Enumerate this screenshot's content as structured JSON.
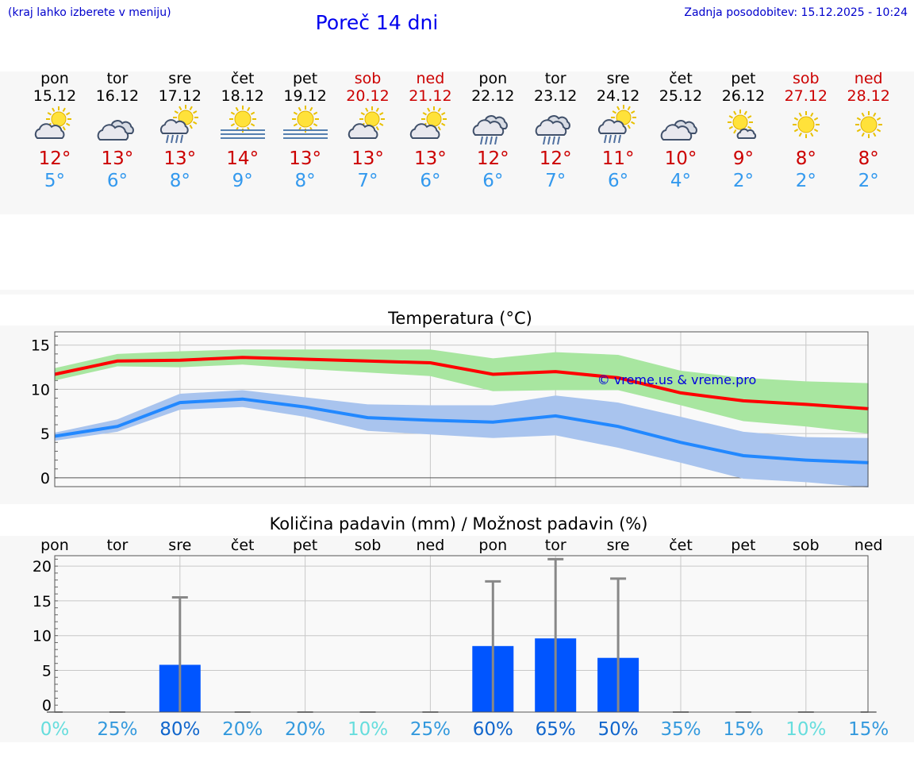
{
  "header": {
    "hint": "(kraj lahko izberete v meniju)",
    "title": "Poreč 14 dni",
    "updated": "Zadnja posodobitev: 15.12.2025 - 10:24"
  },
  "days": [
    {
      "name": "pon",
      "date": "15.12",
      "weekend": false,
      "icon": "sun-cloud-icon",
      "max": "12°",
      "min": "5°"
    },
    {
      "name": "tor",
      "date": "16.12",
      "weekend": false,
      "icon": "cloudy-icon",
      "max": "13°",
      "min": "6°"
    },
    {
      "name": "sre",
      "date": "17.12",
      "weekend": false,
      "icon": "sun-cloud-rain-icon",
      "max": "13°",
      "min": "8°"
    },
    {
      "name": "čet",
      "date": "18.12",
      "weekend": false,
      "icon": "sun-fog-icon",
      "max": "14°",
      "min": "9°"
    },
    {
      "name": "pet",
      "date": "19.12",
      "weekend": false,
      "icon": "sun-fog-icon",
      "max": "13°",
      "min": "8°"
    },
    {
      "name": "sob",
      "date": "20.12",
      "weekend": true,
      "icon": "sun-cloud-icon",
      "max": "13°",
      "min": "7°"
    },
    {
      "name": "ned",
      "date": "21.12",
      "weekend": true,
      "icon": "sun-cloud-icon",
      "max": "13°",
      "min": "6°"
    },
    {
      "name": "pon",
      "date": "22.12",
      "weekend": false,
      "icon": "cloud-rain-icon",
      "max": "12°",
      "min": "6°"
    },
    {
      "name": "tor",
      "date": "23.12",
      "weekend": false,
      "icon": "cloud-rain-icon",
      "max": "12°",
      "min": "7°"
    },
    {
      "name": "sre",
      "date": "24.12",
      "weekend": false,
      "icon": "sun-cloud-rain-icon",
      "max": "11°",
      "min": "6°"
    },
    {
      "name": "čet",
      "date": "25.12",
      "weekend": false,
      "icon": "cloudy-icon",
      "max": "10°",
      "min": "4°"
    },
    {
      "name": "pet",
      "date": "26.12",
      "weekend": false,
      "icon": "sun-small-cloud-icon",
      "max": "9°",
      "min": "2°"
    },
    {
      "name": "sob",
      "date": "27.12",
      "weekend": true,
      "icon": "sun-icon",
      "max": "8°",
      "min": "2°"
    },
    {
      "name": "ned",
      "date": "28.12",
      "weekend": true,
      "icon": "sun-icon",
      "max": "8°",
      "min": "2°"
    }
  ],
  "colors": {
    "max": "#cc0000",
    "min": "#3399ee",
    "max_line": "#ff0000",
    "min_line": "#2288ff",
    "max_band": "#a8e6a0",
    "min_band": "#a9c4ee",
    "bar": "#0055ff",
    "whisker": "#888888"
  },
  "chart_data": [
    {
      "type": "line",
      "title": "Temperatura (°C)",
      "watermark": "© vreme.us & vreme.pro",
      "categories": [
        "pon",
        "tor",
        "sre",
        "čet",
        "pet",
        "sob",
        "ned",
        "pon",
        "tor",
        "sre",
        "čet",
        "pet",
        "sob",
        "ned"
      ],
      "ylim": [
        -1,
        16.5
      ],
      "yticks": [
        0,
        5,
        10,
        15
      ],
      "series": [
        {
          "name": "max",
          "values": [
            11.7,
            13.2,
            13.3,
            13.6,
            13.4,
            13.2,
            13.0,
            11.7,
            12.0,
            11.3,
            9.6,
            8.7,
            8.3,
            7.8
          ],
          "band_low": [
            11.0,
            12.6,
            12.5,
            12.8,
            12.3,
            11.9,
            11.5,
            9.8,
            9.9,
            9.9,
            8.2,
            6.4,
            5.8,
            5.0
          ],
          "band_high": [
            12.4,
            14.0,
            14.3,
            14.5,
            14.5,
            14.5,
            14.5,
            13.5,
            14.2,
            13.9,
            12.1,
            11.3,
            10.9,
            10.7
          ]
        },
        {
          "name": "min",
          "values": [
            4.7,
            5.8,
            8.5,
            8.9,
            8.0,
            6.8,
            6.5,
            6.3,
            7.0,
            5.8,
            4.0,
            2.5,
            2.0,
            1.7
          ],
          "band_low": [
            4.2,
            5.2,
            7.7,
            8.0,
            6.9,
            5.3,
            4.9,
            4.5,
            4.8,
            3.4,
            1.7,
            -0.1,
            -0.5,
            -1.1
          ],
          "band_high": [
            5.1,
            6.6,
            9.5,
            9.9,
            9.1,
            8.3,
            8.2,
            8.2,
            9.3,
            8.5,
            6.9,
            5.2,
            4.6,
            4.5
          ]
        }
      ]
    },
    {
      "type": "bar",
      "title": "Količina padavin (mm) / Možnost padavin (%)",
      "categories": [
        "pon",
        "tor",
        "sre",
        "čet",
        "pet",
        "sob",
        "ned",
        "pon",
        "tor",
        "sre",
        "čet",
        "pet",
        "sob",
        "ned"
      ],
      "ylim": [
        -1,
        21.5
      ],
      "yticks": [
        0,
        5,
        10,
        15,
        20
      ],
      "values": [
        0,
        0,
        5.8,
        0,
        0,
        0,
        0,
        8.5,
        9.6,
        6.8,
        0,
        0,
        0,
        0
      ],
      "max_values": [
        0,
        0,
        15.5,
        0,
        0,
        0,
        0,
        17.8,
        21.0,
        18.2,
        0,
        0,
        0,
        0
      ],
      "probability": [
        "0%",
        "25%",
        "80%",
        "20%",
        "20%",
        "10%",
        "25%",
        "60%",
        "65%",
        "50%",
        "35%",
        "15%",
        "10%",
        "15%"
      ],
      "probability_colors": [
        "#66dddd",
        "#3399dd",
        "#1166cc",
        "#3399dd",
        "#3399dd",
        "#66dddd",
        "#3399dd",
        "#1166cc",
        "#1166cc",
        "#1166cc",
        "#3399dd",
        "#3399dd",
        "#66dddd",
        "#3399dd"
      ]
    }
  ]
}
